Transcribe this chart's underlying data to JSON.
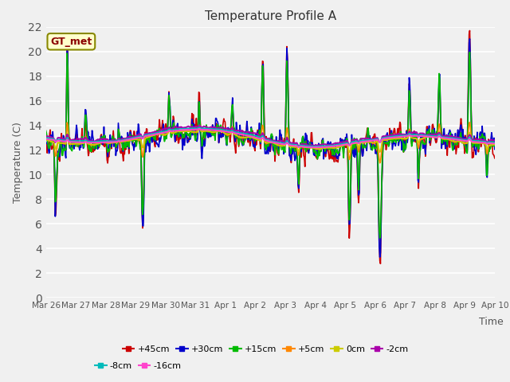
{
  "title": "Temperature Profile A",
  "xlabel": "Time",
  "ylabel": "Temperature (C)",
  "ylim": [
    0,
    22
  ],
  "fig_bg": "#f0f0f0",
  "plot_bg": "#f0f0f0",
  "legend_label": "GT_met",
  "series": {
    "+45cm": {
      "color": "#cc0000",
      "lw": 1.2
    },
    "+30cm": {
      "color": "#0000cc",
      "lw": 1.2
    },
    "+15cm": {
      "color": "#00bb00",
      "lw": 1.2
    },
    "+5cm": {
      "color": "#ff8800",
      "lw": 1.2
    },
    "0cm": {
      "color": "#cccc00",
      "lw": 1.2
    },
    "-2cm": {
      "color": "#aa00aa",
      "lw": 1.5
    },
    "-8cm": {
      "color": "#00bbbb",
      "lw": 1.2
    },
    "-16cm": {
      "color": "#ff44cc",
      "lw": 1.5
    }
  },
  "x_tick_labels": [
    "Mar 26",
    "Mar 27",
    "Mar 28",
    "Mar 29",
    "Mar 30",
    "Mar 31",
    "Apr 1",
    "Apr 2",
    "Apr 3",
    "Apr 4",
    "Apr 5",
    "Apr 6",
    "Apr 7",
    "Apr 8",
    "Apr 9",
    "Apr 10"
  ],
  "num_points": 720,
  "seed": 7
}
